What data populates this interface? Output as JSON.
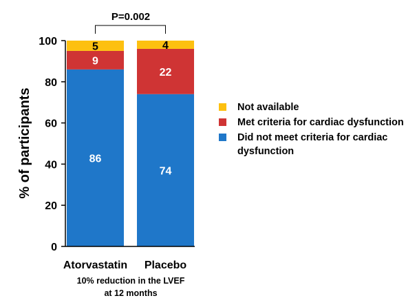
{
  "chart_data": {
    "type": "bar",
    "stacked": true,
    "ylabel": "% of participants",
    "ylim": [
      0,
      100
    ],
    "yticks": [
      0,
      20,
      40,
      60,
      80,
      100
    ],
    "categories": [
      "Atorvastatin",
      "Placebo"
    ],
    "series": [
      {
        "name": "Did not meet criteria for cardiac dysfunction",
        "values": [
          86,
          74
        ],
        "color": "#1f77c9",
        "label_color": "#ffffff"
      },
      {
        "name": "Met criteria for cardiac dysfunction",
        "values": [
          9,
          22
        ],
        "color": "#cf3434",
        "label_color": "#ffffff"
      },
      {
        "name": "Not available",
        "values": [
          5,
          4
        ],
        "color": "#fdc010",
        "label_color": "#000000"
      }
    ],
    "annotation": "P=0.002",
    "xnote_lines": [
      "10% reduction in the LVEF",
      "at 12 months"
    ],
    "legend_position": "right"
  }
}
